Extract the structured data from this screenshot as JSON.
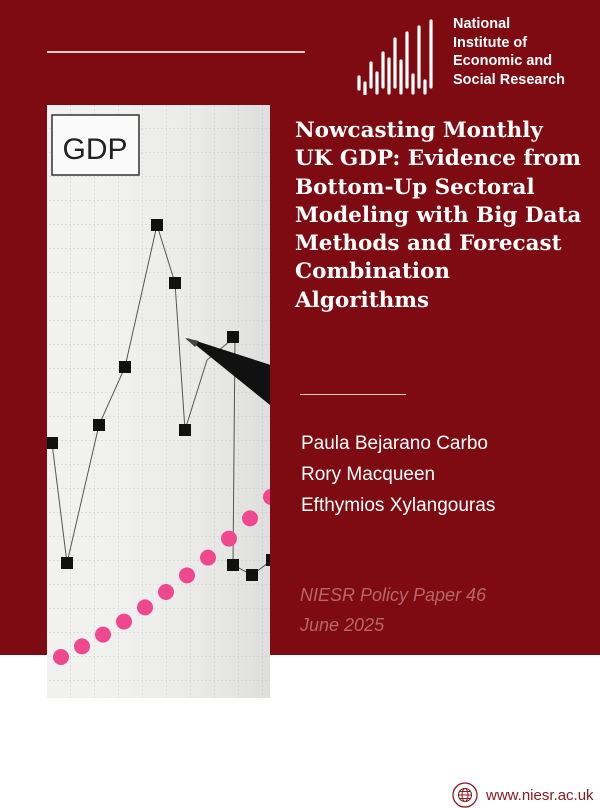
{
  "organisation": {
    "name_lines": [
      "National",
      "Institute of",
      "Economic and",
      "Social Research"
    ]
  },
  "photo": {
    "label": "GDP"
  },
  "title": "Nowcasting Monthly UK GDP: Evidence from Bottom-Up Sectoral Modeling with Big Data Methods and Forecast Combination Algorithms",
  "authors": [
    "Paula Bejarano Carbo",
    "Rory Macqueen",
    "Efthymios Xylangouras"
  ],
  "series": "NIESR Policy Paper 46",
  "date": "June 2025",
  "footer": {
    "url": "www.niesr.ac.uk",
    "icon": "globe-icon"
  },
  "colors": {
    "brand": "#7e0b12",
    "muted_text": "#b6676c",
    "dots": "#f0488f"
  }
}
